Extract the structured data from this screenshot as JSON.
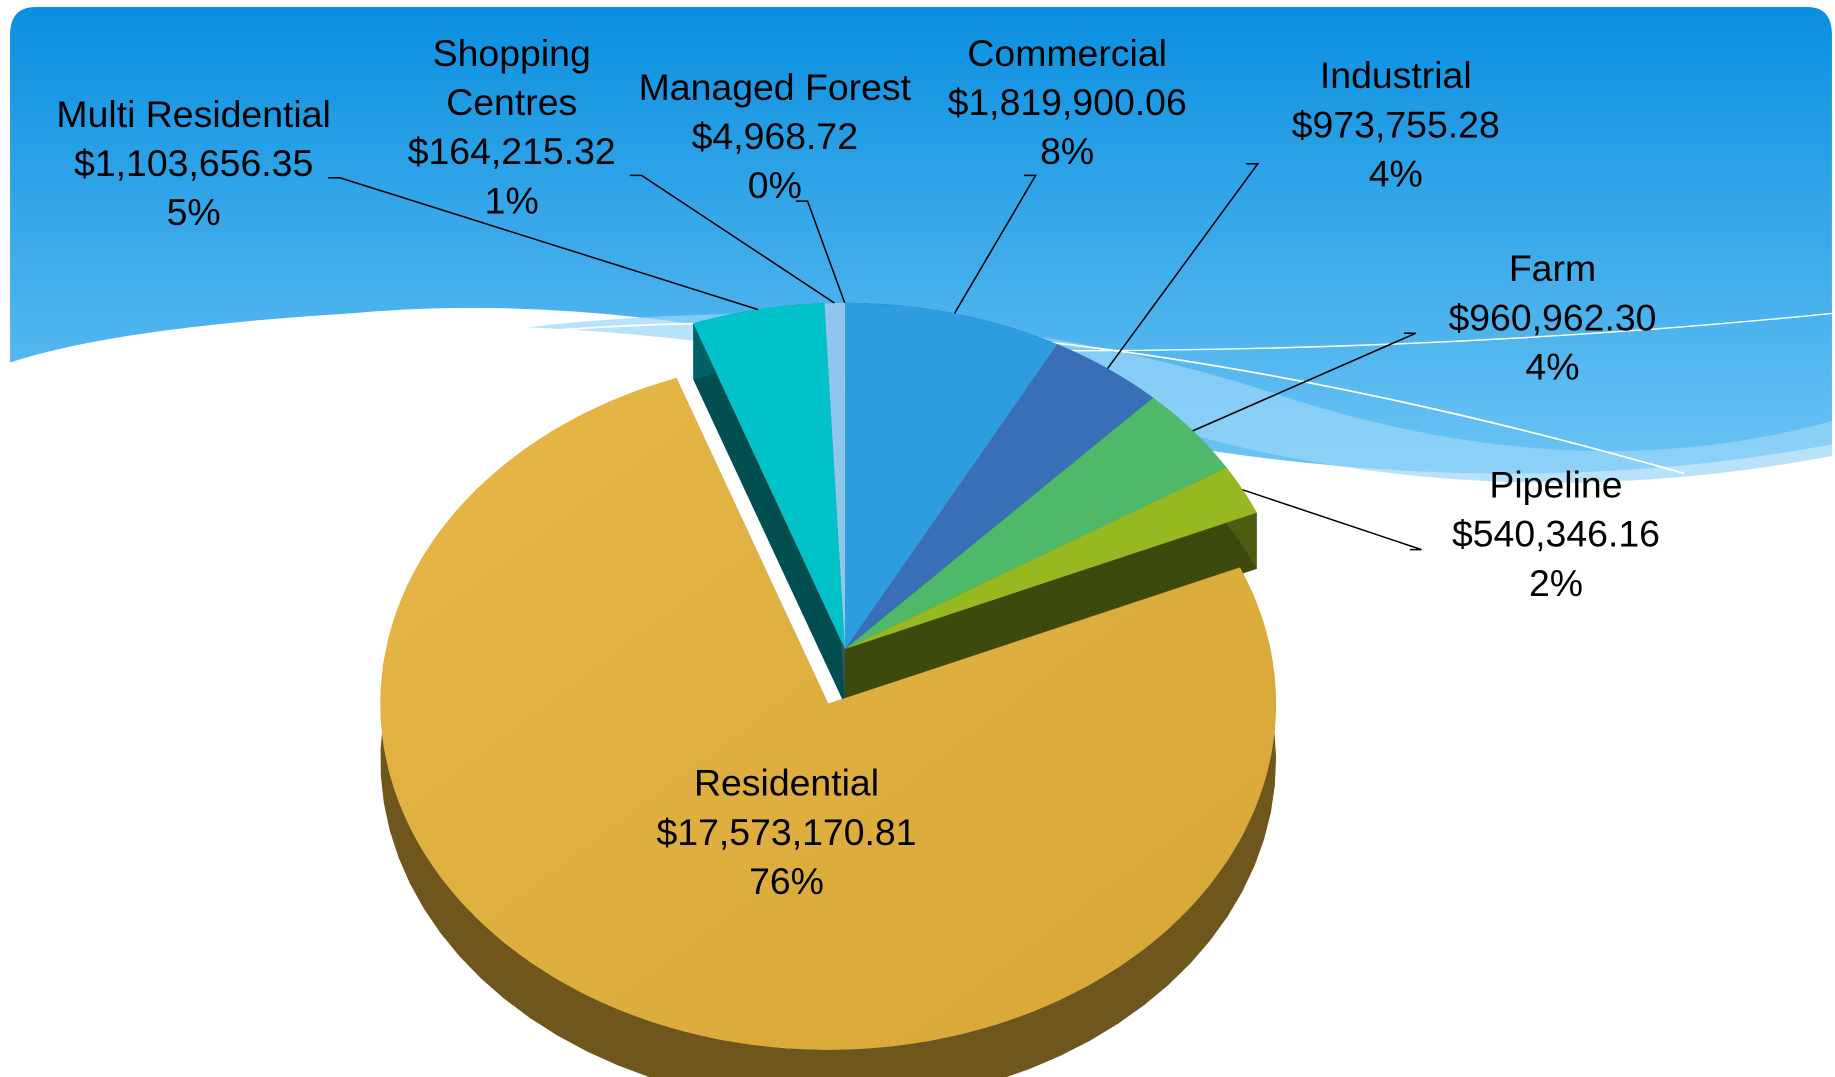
{
  "chart_data": {
    "type": "pie3d",
    "categories": [
      "Commercial",
      "Industrial",
      "Farm",
      "Pipeline",
      "Residential",
      "Multi Residential",
      "Shopping Centres",
      "Managed Forest"
    ],
    "values": [
      1819900.06,
      973755.28,
      960962.3,
      540346.16,
      17573170.81,
      1103656.35,
      164215.32,
      4968.72
    ],
    "value_labels": [
      "$1,819,900.06",
      "$973,755.28",
      "$960,962.30",
      "$540,346.16",
      "$17,573,170.81",
      "$1,103,656.35",
      "$164,215.32",
      "$4,968.72"
    ],
    "percent_labels": [
      "8%",
      "4%",
      "4%",
      "2%",
      "76%",
      "5%",
      "1%",
      "0%"
    ],
    "colors": [
      "#2e9de0",
      "#3a6fb8",
      "#4fb96a",
      "#97b820",
      "#deab3a",
      "#00c2c8",
      "#8fc6ec",
      "#a9d3f3"
    ],
    "exploded": "Residential"
  }
}
